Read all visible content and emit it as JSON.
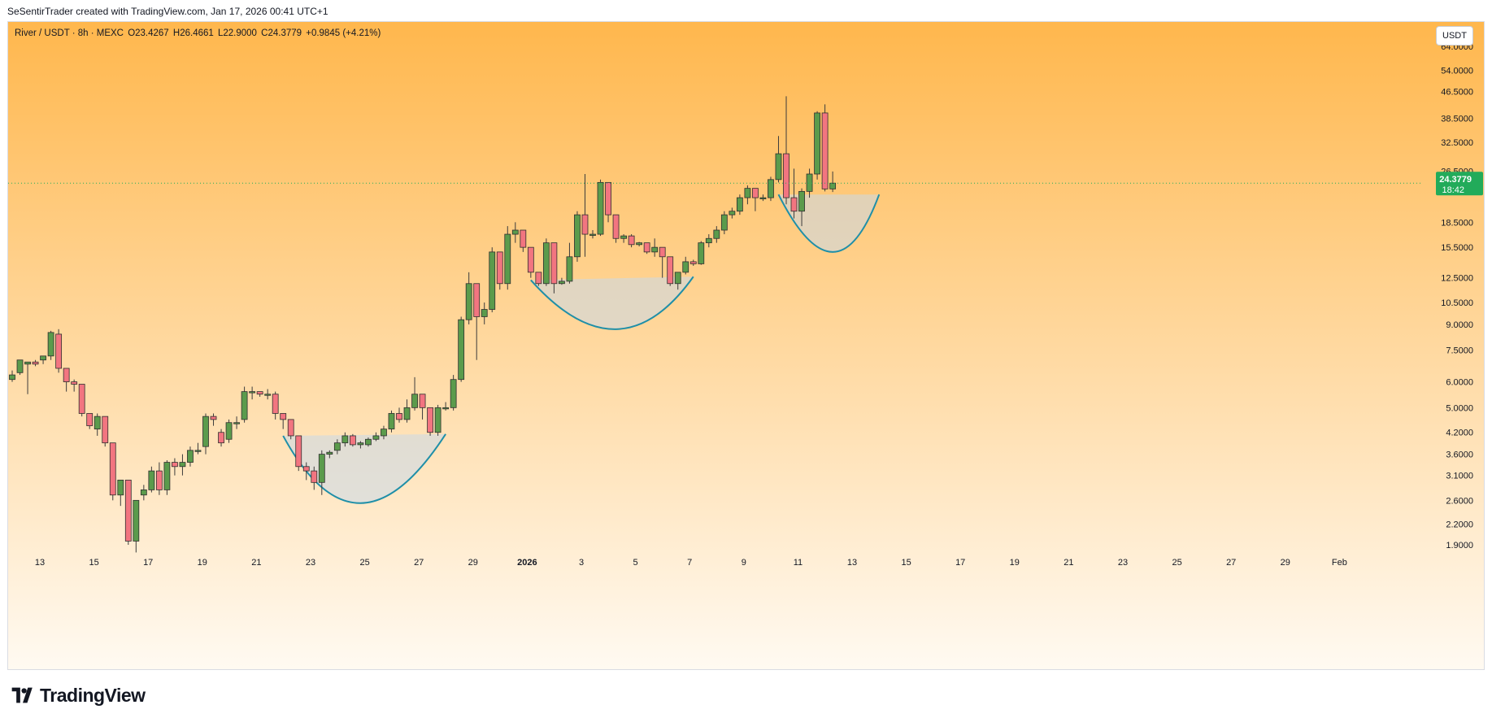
{
  "header": {
    "credit": "SeSentirTrader created with TradingView.com, Jan 17, 2026 00:41 UTC+1"
  },
  "legend": {
    "symbol": "River / USDT · 8h · MEXC",
    "open": "O23.4267",
    "high": "H26.4661",
    "low": "L22.9000",
    "close": "C24.3779",
    "change": "+0.9845 (+4.21%)"
  },
  "currency_button": "USDT",
  "footer": {
    "brand": "TradingView"
  },
  "colors": {
    "up": "#4caf50",
    "down": "#f23645",
    "up_fill": "#5b9b4c",
    "down_fill": "#f27580",
    "price_tag": "#22ab5a",
    "curve": "#1f8fa8",
    "gradient_top": "#ffb74d",
    "gradient_bottom": "#fffaf2"
  },
  "chart_data": {
    "type": "candlestick",
    "scale": "log",
    "timeframe": "8h",
    "y_ticks": [
      "64.0000",
      "54.0000",
      "46.5000",
      "38.5000",
      "32.5000",
      "26.5000",
      "18.5000",
      "15.5000",
      "12.5000",
      "10.5000",
      "9.0000",
      "7.5000",
      "6.0000",
      "5.0000",
      "4.2000",
      "3.6000",
      "3.1000",
      "2.6000",
      "2.2000",
      "1.9000"
    ],
    "x_ticks": [
      "13",
      "15",
      "17",
      "19",
      "21",
      "23",
      "25",
      "27",
      "29",
      "2026",
      "3",
      "5",
      "7",
      "9",
      "11",
      "13",
      "15",
      "17",
      "19",
      "21",
      "23",
      "25",
      "27",
      "29",
      "Feb"
    ],
    "last_price": {
      "value": "24.3779",
      "countdown": "18:42",
      "price": 24.3779
    },
    "candles": [
      [
        6.1,
        6.3,
        6.0,
        6.5
      ],
      [
        6.4,
        7.0,
        6.3,
        7.0
      ],
      [
        6.8,
        6.9,
        5.5,
        6.8
      ],
      [
        6.9,
        6.8,
        6.7,
        7.0
      ],
      [
        7.0,
        7.2,
        6.8,
        7.2
      ],
      [
        7.2,
        8.5,
        7.0,
        8.6
      ],
      [
        8.4,
        6.6,
        6.4,
        8.7
      ],
      [
        6.6,
        6.0,
        5.6,
        6.6
      ],
      [
        6.0,
        5.9,
        5.6,
        6.1
      ],
      [
        5.9,
        4.8,
        4.7,
        5.9
      ],
      [
        4.8,
        4.4,
        4.3,
        4.8
      ],
      [
        4.3,
        4.7,
        4.1,
        4.8
      ],
      [
        4.7,
        3.9,
        3.8,
        4.7
      ],
      [
        3.9,
        2.7,
        2.6,
        3.9
      ],
      [
        2.7,
        3.0,
        2.5,
        3.0
      ],
      [
        3.0,
        1.95,
        1.9,
        3.0
      ],
      [
        1.95,
        2.6,
        1.8,
        2.6
      ],
      [
        2.7,
        2.8,
        2.6,
        2.9
      ],
      [
        2.8,
        3.2,
        2.75,
        3.3
      ],
      [
        3.2,
        2.8,
        2.7,
        3.4
      ],
      [
        2.8,
        3.4,
        2.7,
        3.45
      ],
      [
        3.4,
        3.3,
        3.1,
        3.5
      ],
      [
        3.3,
        3.4,
        3.1,
        3.6
      ],
      [
        3.4,
        3.7,
        3.3,
        3.8
      ],
      [
        3.7,
        3.7,
        3.6,
        3.9
      ],
      [
        3.8,
        4.7,
        3.6,
        4.8
      ],
      [
        4.7,
        4.6,
        4.4,
        4.8
      ],
      [
        4.2,
        3.9,
        3.8,
        4.3
      ],
      [
        4.0,
        4.5,
        3.9,
        4.6
      ],
      [
        4.5,
        4.5,
        4.3,
        4.7
      ],
      [
        4.6,
        5.6,
        4.5,
        5.8
      ],
      [
        5.6,
        5.6,
        5.3,
        5.8
      ],
      [
        5.6,
        5.5,
        5.4,
        5.6
      ],
      [
        5.5,
        5.5,
        5.3,
        5.7
      ],
      [
        5.5,
        4.8,
        4.6,
        5.6
      ],
      [
        4.8,
        4.6,
        4.3,
        4.8
      ],
      [
        4.6,
        4.1,
        4.0,
        4.6
      ],
      [
        4.1,
        3.3,
        3.2,
        4.1
      ],
      [
        3.3,
        3.2,
        3.0,
        3.4
      ],
      [
        3.2,
        2.95,
        2.8,
        3.3
      ],
      [
        2.95,
        3.6,
        2.7,
        3.7
      ],
      [
        3.6,
        3.65,
        3.5,
        3.7
      ],
      [
        3.7,
        3.9,
        3.6,
        4.0
      ],
      [
        3.9,
        4.1,
        3.8,
        4.2
      ],
      [
        4.1,
        3.85,
        3.8,
        4.15
      ],
      [
        3.85,
        3.9,
        3.75,
        3.95
      ],
      [
        3.85,
        4.0,
        3.8,
        4.05
      ],
      [
        4.0,
        4.1,
        3.95,
        4.2
      ],
      [
        4.1,
        4.3,
        4.0,
        4.4
      ],
      [
        4.3,
        4.8,
        4.2,
        4.9
      ],
      [
        4.8,
        4.6,
        4.5,
        5.0
      ],
      [
        4.6,
        5.0,
        4.5,
        5.3
      ],
      [
        5.0,
        5.5,
        4.9,
        6.2
      ],
      [
        5.5,
        5.0,
        4.6,
        5.5
      ],
      [
        5.0,
        4.2,
        4.1,
        5.0
      ],
      [
        4.2,
        5.0,
        4.1,
        5.1
      ],
      [
        5.0,
        5.0,
        4.9,
        5.2
      ],
      [
        5.0,
        6.1,
        4.9,
        6.3
      ],
      [
        6.1,
        9.3,
        6.0,
        9.5
      ],
      [
        9.3,
        12.0,
        9.0,
        13.0
      ],
      [
        12.0,
        9.5,
        7.0,
        12.0
      ],
      [
        9.5,
        10.0,
        9.0,
        10.5
      ],
      [
        10.0,
        15.0,
        9.8,
        15.5
      ],
      [
        15.0,
        12.0,
        11.5,
        15.0
      ],
      [
        12.0,
        17.0,
        11.5,
        18.0
      ],
      [
        17.0,
        17.5,
        16.0,
        18.5
      ],
      [
        17.5,
        15.5,
        15.0,
        17.5
      ],
      [
        15.5,
        13.0,
        12.5,
        15.5
      ],
      [
        13.0,
        12.0,
        11.8,
        13.0
      ],
      [
        12.0,
        16.0,
        11.8,
        16.5
      ],
      [
        16.0,
        12.0,
        11.2,
        16.0
      ],
      [
        12.0,
        12.2,
        11.9,
        12.5
      ],
      [
        12.2,
        14.5,
        12.0,
        16.0
      ],
      [
        14.5,
        19.5,
        14.0,
        20.0
      ],
      [
        19.5,
        17.0,
        14.5,
        26.0
      ],
      [
        17.0,
        17.0,
        16.5,
        17.5
      ],
      [
        17.0,
        24.5,
        16.8,
        25.0
      ],
      [
        24.5,
        19.5,
        18.5,
        24.5
      ],
      [
        19.5,
        16.5,
        16.0,
        19.5
      ],
      [
        16.5,
        16.8,
        16.0,
        17.0
      ],
      [
        16.8,
        15.8,
        15.5,
        17.0
      ],
      [
        15.8,
        16.0,
        15.6,
        16.1
      ],
      [
        16.0,
        15.0,
        14.8,
        16.0
      ],
      [
        15.0,
        15.5,
        14.5,
        16.5
      ],
      [
        15.5,
        14.5,
        12.5,
        15.5
      ],
      [
        14.5,
        12.0,
        11.8,
        14.5
      ],
      [
        12.0,
        13.0,
        11.5,
        13.0
      ],
      [
        13.0,
        14.0,
        12.8,
        14.5
      ],
      [
        14.0,
        13.8,
        13.6,
        14.2
      ],
      [
        13.8,
        16.0,
        13.7,
        16.2
      ],
      [
        16.0,
        16.5,
        15.5,
        17.0
      ],
      [
        16.5,
        17.5,
        16.0,
        18.0
      ],
      [
        17.5,
        19.5,
        17.0,
        20.0
      ],
      [
        19.5,
        20.0,
        19.0,
        20.5
      ],
      [
        20.0,
        22.0,
        19.5,
        22.5
      ],
      [
        22.0,
        23.5,
        21.0,
        24.0
      ],
      [
        23.5,
        22.0,
        20.0,
        23.5
      ],
      [
        22.0,
        22.0,
        21.5,
        22.5
      ],
      [
        22.0,
        25.0,
        21.5,
        25.5
      ],
      [
        25.0,
        30.0,
        24.5,
        34.0
      ],
      [
        30.0,
        22.0,
        21.0,
        45.0
      ],
      [
        22.0,
        20.0,
        19.0,
        27.0
      ],
      [
        20.0,
        23.0,
        18.0,
        23.5
      ],
      [
        23.0,
        26.0,
        22.0,
        27.0
      ],
      [
        26.0,
        40.0,
        25.0,
        40.5
      ],
      [
        40.0,
        23.4,
        23.0,
        42.5
      ],
      [
        23.4,
        24.38,
        22.9,
        26.47
      ]
    ],
    "cup_patterns": [
      {
        "start_index": 35,
        "end_index": 56,
        "rim_start": 4.1,
        "rim_end": 4.15,
        "bottom": 2.55,
        "bottom_index": 45
      },
      {
        "start_index": 67,
        "end_index": 88,
        "rim_start": 12.3,
        "rim_end": 12.6,
        "bottom": 8.7,
        "bottom_index": 78
      },
      {
        "start_index": 99,
        "end_index": 112,
        "rim_start": 22.5,
        "rim_end": 22.5,
        "bottom": 15.0,
        "bottom_index": 106
      }
    ]
  }
}
